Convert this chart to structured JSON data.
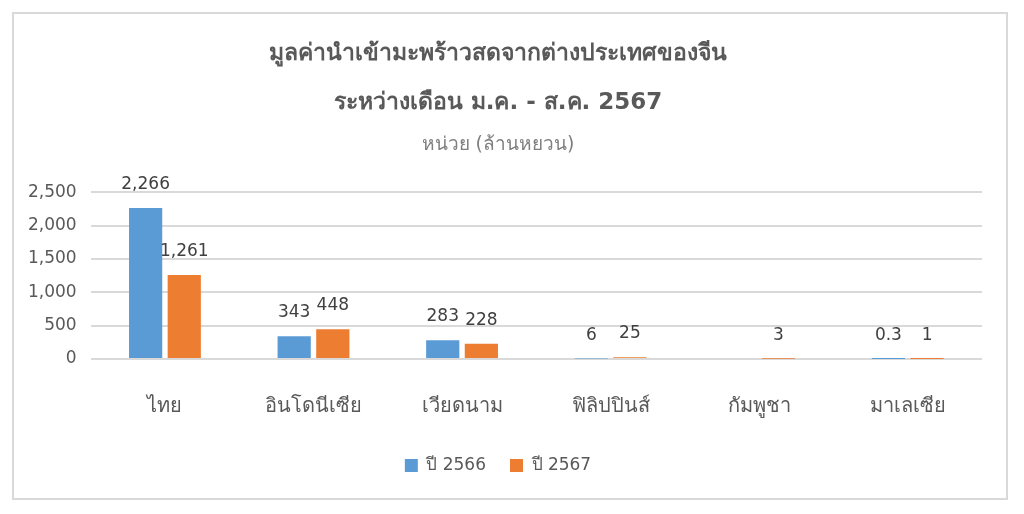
{
  "chart_data": {
    "type": "bar",
    "title": "มูลค่านำเข้ามะพร้าวสดจากต่างประเทศของจีน\nระหว่างเดือน ม.ค. - ส.ค. 2567",
    "subtitle": "หน่วย (ล้านหยวน)",
    "categories": [
      "ไทย",
      "อินโดนีเซีย",
      "เวียดนาม",
      "ฟิลิปปินส์",
      "กัมพูชา",
      "มาเลเซีย"
    ],
    "series": [
      {
        "name": "ปี 2566",
        "color": "#5b9bd5",
        "values": [
          2266,
          343,
          283,
          6,
          null,
          0.3
        ],
        "value_labels": [
          "2,266",
          "343",
          "283",
          "6",
          null,
          "0.3"
        ]
      },
      {
        "name": "ปี 2567",
        "color": "#ed7d31",
        "values": [
          1261,
          448,
          228,
          25,
          3,
          1
        ],
        "value_labels": [
          "1,261",
          "448",
          "228",
          "25",
          "3",
          "1"
        ]
      }
    ],
    "ylim": [
      0,
      2500
    ],
    "yticks": [
      0,
      {
        "value": 500,
        "label": "500"
      },
      {
        "value": 1000,
        "label": "1,000"
      },
      {
        "value": 1500,
        "label": "1,500"
      },
      {
        "value": 2000,
        "label": "2,000"
      },
      {
        "value": 2500,
        "label": "2,500"
      }
    ],
    "grid": "y",
    "legend": "bottom"
  }
}
